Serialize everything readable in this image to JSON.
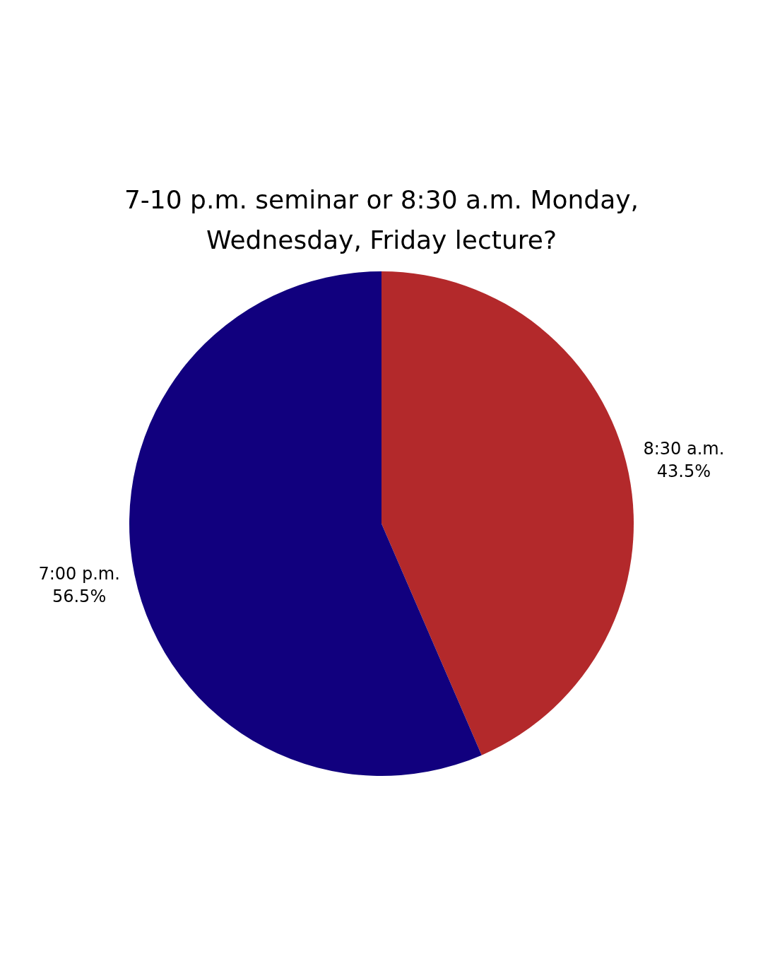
{
  "chart_data": {
    "type": "pie",
    "title": "7-10 p.m. seminar or 8:30 a.m. Monday, Wednesday, Friday lecture?",
    "categories": [
      "8:30 a.m.",
      "7:00 p.m."
    ],
    "values": [
      43.5,
      56.5
    ],
    "value_labels": [
      "43.5%",
      "56.5%"
    ],
    "colors": [
      "#b3292b",
      "#11007e"
    ],
    "legend": false
  }
}
